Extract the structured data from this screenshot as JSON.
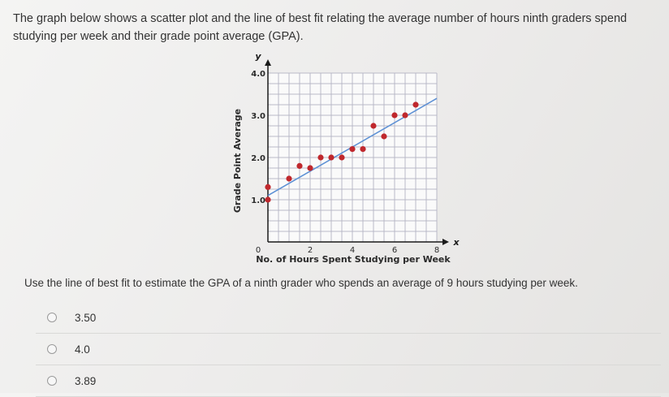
{
  "question": {
    "text": "The graph below shows a scatter plot and the line of best fit relating the average number of hours ninth graders spend studying per week and their grade point average (GPA)."
  },
  "chart_data": {
    "type": "scatter",
    "xlabel": "No. of Hours Spent Studying per Week",
    "ylabel": "Grade Point Average",
    "x_axis_letter": "x",
    "y_axis_letter": "y",
    "xlim": [
      0,
      8
    ],
    "ylim": [
      0,
      4.0
    ],
    "x_ticks": [
      "2",
      "4",
      "6",
      "8"
    ],
    "y_ticks": [
      "1.0",
      "2.0",
      "3.0",
      "4.0"
    ],
    "origin_label": "0",
    "grid": true,
    "points": [
      {
        "x": 0,
        "y": 1.0
      },
      {
        "x": 0,
        "y": 1.3
      },
      {
        "x": 1,
        "y": 1.5
      },
      {
        "x": 1.5,
        "y": 1.8
      },
      {
        "x": 2,
        "y": 1.75
      },
      {
        "x": 2.5,
        "y": 2.0
      },
      {
        "x": 3,
        "y": 2.0
      },
      {
        "x": 3.5,
        "y": 2.0
      },
      {
        "x": 4,
        "y": 2.2
      },
      {
        "x": 4.5,
        "y": 2.2
      },
      {
        "x": 5,
        "y": 2.75
      },
      {
        "x": 5.5,
        "y": 2.5
      },
      {
        "x": 6,
        "y": 3.0
      },
      {
        "x": 6.5,
        "y": 3.0
      },
      {
        "x": 7,
        "y": 3.25
      }
    ],
    "best_fit_line": {
      "x1": 0,
      "y1": 1.1,
      "x2": 8,
      "y2": 3.4
    },
    "point_color": "#c0282d",
    "line_color": "#5b8fd4"
  },
  "prompt": {
    "text": "Use the line of best fit to estimate the GPA of a ninth grader who spends an average of 9 hours studying per week."
  },
  "answers": [
    {
      "label": "3.50"
    },
    {
      "label": "4.0"
    },
    {
      "label": "3.89"
    }
  ]
}
